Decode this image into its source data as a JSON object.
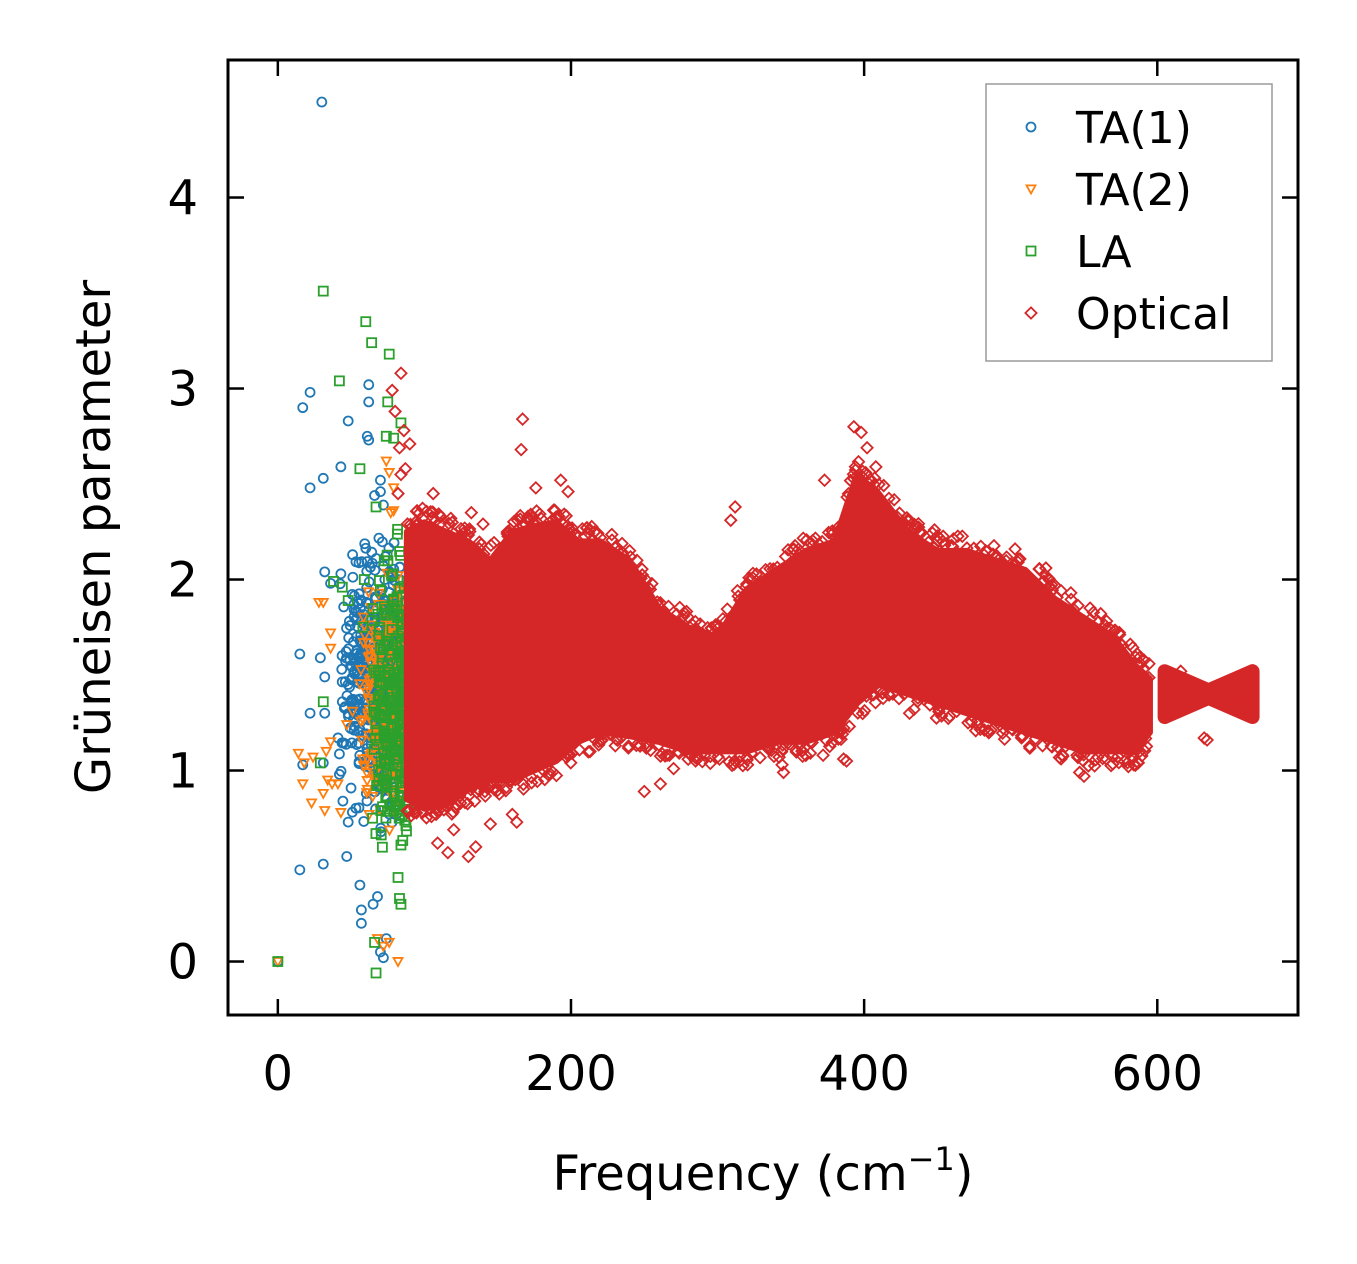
{
  "chart_data": {
    "type": "scatter",
    "title": "",
    "xlabel": "Frequency (cm",
    "xlabel_sup": "−1",
    "xlabel_suffix": ")",
    "ylabel": "Grüneisen parameter",
    "xlim": [
      -34,
      696
    ],
    "ylim": [
      -0.28,
      4.72
    ],
    "xticks": [
      0,
      200,
      400,
      600
    ],
    "yticks": [
      0,
      1,
      2,
      3,
      4
    ],
    "legend_position": "top-right",
    "series": [
      {
        "name": "TA(1)",
        "marker": "circle",
        "color": "#1f77b4",
        "points": [
          [
            30,
            4.5
          ],
          [
            22,
            2.98
          ],
          [
            17,
            2.9
          ],
          [
            22,
            2.48
          ],
          [
            31,
            2.53
          ],
          [
            43,
            2.59
          ],
          [
            48,
            2.83
          ],
          [
            62,
            3.02
          ],
          [
            62,
            2.93
          ],
          [
            61,
            2.75
          ],
          [
            62,
            2.73
          ],
          [
            32,
            2.04
          ],
          [
            36,
            1.98
          ],
          [
            43,
            2.03
          ],
          [
            51,
            2.13
          ],
          [
            15,
            1.61
          ],
          [
            29,
            1.59
          ],
          [
            32,
            1.49
          ],
          [
            22,
            1.3
          ],
          [
            32,
            1.3
          ],
          [
            44,
            1.36
          ],
          [
            17,
            1.03
          ],
          [
            31,
            1.04
          ],
          [
            42,
            0.98
          ],
          [
            48,
            0.73
          ],
          [
            15,
            0.48
          ],
          [
            31,
            0.51
          ],
          [
            47,
            0.55
          ],
          [
            56,
            0.4
          ],
          [
            57,
            0.27
          ],
          [
            57,
            0.2
          ],
          [
            65,
            0.3
          ],
          [
            68,
            0.34
          ],
          [
            70,
            0.05
          ],
          [
            72,
            0.02
          ],
          [
            74,
            0.12
          ],
          [
            0,
            0.0
          ],
          [
            66,
            2.44
          ],
          [
            70,
            2.52
          ],
          [
            72,
            2.39
          ],
          [
            70,
            2.46
          ]
        ],
        "band": {
          "xmin": 40,
          "xmax": 84,
          "ymin": 0.55,
          "ymax": 2.4,
          "count": 520
        }
      },
      {
        "name": "TA(2)",
        "marker": "triangle-down",
        "color": "#ff7f0e",
        "points": [
          [
            28,
            1.88
          ],
          [
            31,
            1.88
          ],
          [
            14,
            1.09
          ],
          [
            18,
            1.04
          ],
          [
            24,
            1.07
          ],
          [
            33,
            1.1
          ],
          [
            36,
            1.15
          ],
          [
            17,
            0.93
          ],
          [
            23,
            0.83
          ],
          [
            31,
            0.88
          ],
          [
            34,
            0.95
          ],
          [
            41,
            0.93
          ],
          [
            32,
            0.79
          ],
          [
            37,
            0.93
          ],
          [
            43,
            0.78
          ],
          [
            47,
            1.24
          ],
          [
            51,
            1.31
          ],
          [
            36,
            1.64
          ],
          [
            36,
            1.72
          ],
          [
            74,
            2.62
          ],
          [
            76,
            2.56
          ],
          [
            79,
            2.48
          ],
          [
            77,
            2.35
          ],
          [
            79,
            2.36
          ],
          [
            82,
            2.02
          ],
          [
            83,
            1.94
          ],
          [
            84,
            1.83
          ],
          [
            68,
            0.12
          ],
          [
            72,
            0.08
          ],
          [
            76,
            0.1
          ],
          [
            82,
            0.0
          ],
          [
            0,
            0.0
          ]
        ],
        "band": {
          "xmin": 55,
          "xmax": 86,
          "ymin": 0.45,
          "ymax": 2.15,
          "count": 260
        }
      },
      {
        "name": "LA",
        "marker": "square",
        "color": "#2ca02c",
        "points": [
          [
            31,
            3.51
          ],
          [
            60,
            3.35
          ],
          [
            64,
            3.24
          ],
          [
            76,
            3.18
          ],
          [
            42,
            3.04
          ],
          [
            75,
            2.93
          ],
          [
            84,
            2.82
          ],
          [
            74,
            2.75
          ],
          [
            79,
            2.74
          ],
          [
            38,
            1.99
          ],
          [
            44,
            1.96
          ],
          [
            48,
            1.89
          ],
          [
            59,
            2.0
          ],
          [
            58,
            1.75
          ],
          [
            67,
            2.38
          ],
          [
            56,
            2.58
          ],
          [
            31,
            1.36
          ],
          [
            29,
            1.04
          ],
          [
            66,
            0.1
          ],
          [
            67,
            -0.06
          ],
          [
            0,
            0.0
          ],
          [
            83,
            0.33
          ],
          [
            82,
            0.44
          ],
          [
            84,
            0.61
          ],
          [
            84,
            0.3
          ]
        ],
        "band": {
          "xmin": 64,
          "xmax": 90,
          "ymin": 0.3,
          "ymax": 2.4,
          "count": 320
        }
      },
      {
        "name": "Optical",
        "marker": "diamond",
        "color": "#d62728",
        "points": [
          [
            78,
            2.99
          ],
          [
            84,
            3.08
          ],
          [
            80,
            2.88
          ],
          [
            87,
            2.58
          ],
          [
            84,
            2.55
          ],
          [
            82,
            2.45
          ],
          [
            83,
            2.69
          ],
          [
            86,
            2.78
          ],
          [
            90,
            2.71
          ],
          [
            167,
            2.84
          ],
          [
            166,
            2.68
          ],
          [
            176,
            2.48
          ],
          [
            193,
            2.52
          ],
          [
            198,
            2.46
          ],
          [
            312,
            2.38
          ],
          [
            309,
            2.31
          ],
          [
            373,
            2.52
          ],
          [
            393,
            2.8
          ],
          [
            398,
            2.77
          ],
          [
            402,
            2.69
          ],
          [
            408,
            2.59
          ],
          [
            418,
            2.33
          ],
          [
            426,
            2.3
          ],
          [
            448,
            2.26
          ],
          [
            483,
            2.15
          ],
          [
            503,
            2.16
          ],
          [
            524,
            2.06
          ],
          [
            541,
            1.93
          ],
          [
            342,
            1.07
          ],
          [
            344,
            1.03
          ],
          [
            345,
            0.99
          ],
          [
            372,
            1.08
          ],
          [
            386,
            1.06
          ],
          [
            388,
            1.05
          ],
          [
            431,
            1.3
          ],
          [
            434,
            1.32
          ],
          [
            445,
            1.42
          ],
          [
            436,
            1.4
          ],
          [
            547,
            0.99
          ],
          [
            550,
            0.97
          ],
          [
            584,
            1.03
          ],
          [
            587,
            1.04
          ],
          [
            632,
            1.17
          ],
          [
            634,
            1.16
          ],
          [
            663,
            1.38
          ],
          [
            657,
            1.39
          ],
          [
            616,
            1.52
          ],
          [
            608,
            1.5
          ],
          [
            109,
            0.62
          ],
          [
            116,
            0.57
          ],
          [
            120,
            0.69
          ],
          [
            130,
            0.55
          ],
          [
            135,
            0.6
          ],
          [
            145,
            0.72
          ],
          [
            160,
            0.77
          ],
          [
            163,
            0.73
          ],
          [
            95,
            2.36
          ],
          [
            106,
            2.45
          ],
          [
            118,
            2.32
          ],
          [
            132,
            2.35
          ],
          [
            140,
            2.29
          ],
          [
            250,
            0.89
          ],
          [
            261,
            0.93
          ],
          [
            270,
            1.01
          ],
          [
            285,
            1.05
          ],
          [
            291,
            1.08
          ],
          [
            320,
            1.07
          ],
          [
            210,
            2.14
          ],
          [
            220,
            2.22
          ],
          [
            245,
            2.1
          ]
        ],
        "envelope": {
          "x": [
            88,
            100,
            115,
            130,
            145,
            160,
            175,
            190,
            205,
            220,
            240,
            260,
            280,
            300,
            320,
            340,
            360,
            380,
            395,
            410,
            430,
            450,
            470,
            490,
            510,
            530,
            550,
            570,
            585,
            595
          ],
          "top": [
            2.25,
            2.3,
            2.25,
            2.2,
            2.1,
            2.25,
            2.28,
            2.3,
            2.2,
            2.2,
            2.1,
            1.85,
            1.75,
            1.7,
            1.95,
            2.05,
            2.15,
            2.2,
            2.55,
            2.45,
            2.25,
            2.15,
            2.15,
            2.1,
            2.05,
            1.9,
            1.8,
            1.7,
            1.55,
            1.48
          ],
          "bottom": [
            0.85,
            0.8,
            0.82,
            0.9,
            0.95,
            0.95,
            1.0,
            1.05,
            1.15,
            1.2,
            1.18,
            1.15,
            1.1,
            1.1,
            1.1,
            1.15,
            1.15,
            1.2,
            1.35,
            1.45,
            1.4,
            1.35,
            1.3,
            1.25,
            1.2,
            1.15,
            1.1,
            1.1,
            1.1,
            1.2
          ]
        },
        "cluster": {
          "x": [
            605,
            665
          ],
          "y_center": 1.4,
          "half_height": [
            0.12,
            0.02,
            0.12
          ]
        }
      }
    ]
  }
}
